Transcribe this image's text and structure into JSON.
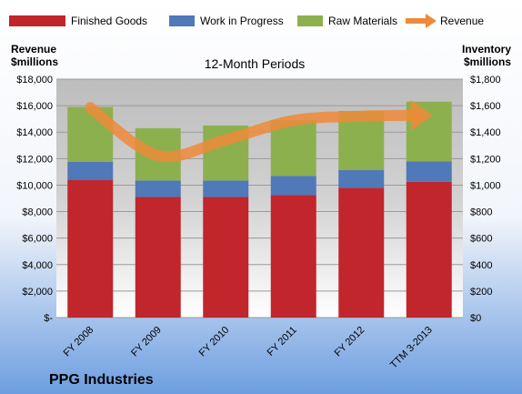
{
  "chart_data": {
    "type": "bar",
    "stacked": true,
    "title": "12-Month Periods",
    "company": "PPG Industries",
    "left_axis_label_line1": "Revenue",
    "left_axis_label_line2": "$millions",
    "right_axis_label_line1": "Inventory",
    "right_axis_label_line2": "$millions",
    "categories": [
      "FY 2008",
      "FY 2009",
      "FY 2010",
      "FY 2011",
      "FY 2012",
      "TTM 3-2013"
    ],
    "left_ylim": [
      0,
      18000
    ],
    "right_ylim": [
      0,
      1800
    ],
    "left_ticks": [
      "$-",
      "$2,000",
      "$4,000",
      "$6,000",
      "$8,000",
      "$10,000",
      "$12,000",
      "$14,000",
      "$16,000",
      "$18,000"
    ],
    "right_ticks": [
      "$0",
      "$200",
      "$400",
      "$600",
      "$800",
      "$1,000",
      "$1,200",
      "$1,400",
      "$1,600",
      "$1,800"
    ],
    "grid": true,
    "legend_position": "top",
    "inventory_series": [
      {
        "name": "Finished Goods",
        "color": "#c0262c",
        "values": [
          1040,
          910,
          910,
          925,
          980,
          1025
        ]
      },
      {
        "name": "Work in Progress",
        "color": "#4f79b8",
        "values": [
          135,
          125,
          125,
          145,
          135,
          155
        ]
      },
      {
        "name": "Raw Materials",
        "color": "#8db04e",
        "values": [
          415,
          395,
          415,
          420,
          445,
          450
        ]
      }
    ],
    "revenue_series": {
      "name": "Revenue",
      "color": "#ee8a3a",
      "values": [
        15850,
        12240,
        13420,
        14890,
        15200,
        15280
      ]
    }
  }
}
